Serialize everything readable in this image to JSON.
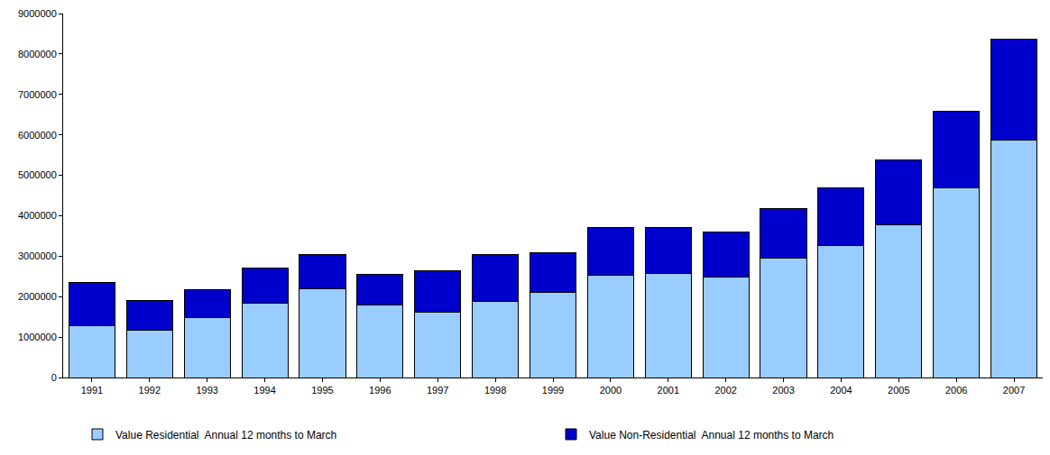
{
  "chart_data": {
    "type": "bar",
    "stacked": true,
    "grid": false,
    "legend": "bottom",
    "categories": [
      "1991",
      "1992",
      "1993",
      "1994",
      "1995",
      "1996",
      "1997",
      "1998",
      "1999",
      "2000",
      "2001",
      "2002",
      "2003",
      "2004",
      "2005",
      "2006",
      "2007"
    ],
    "series": [
      {
        "name": "Value Residential  Annual 12 months to March",
        "color": "#99ccff",
        "values": [
          1270000,
          1170000,
          1480000,
          1840000,
          2200000,
          1800000,
          1610000,
          1890000,
          2100000,
          2530000,
          2580000,
          2480000,
          2950000,
          3270000,
          3780000,
          4690000,
          5870000
        ]
      },
      {
        "name": "Value Non-Residential  Annual 12 months to March",
        "color": "#0000cc",
        "values": [
          1080000,
          730000,
          690000,
          860000,
          830000,
          750000,
          1040000,
          1160000,
          980000,
          1190000,
          1140000,
          1120000,
          1230000,
          1420000,
          1600000,
          1890000,
          2500000
        ]
      }
    ],
    "ylim": [
      0,
      9000000
    ],
    "yticks": [
      0,
      1000000,
      2000000,
      3000000,
      4000000,
      5000000,
      6000000,
      7000000,
      8000000,
      9000000
    ]
  }
}
